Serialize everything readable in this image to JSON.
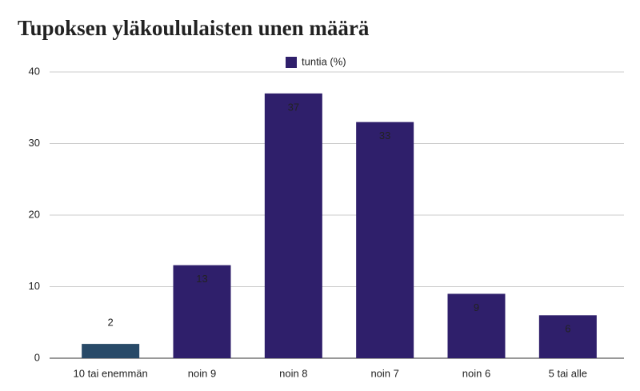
{
  "chart_data": {
    "type": "bar",
    "title": "Tupoksen yläkoululaisten unen määrä",
    "categories": [
      "10 tai enemmän",
      "noin 9",
      "noin 8",
      "noin 7",
      "noin 6",
      "5 tai alle"
    ],
    "series": [
      {
        "name": "tuntia (%)",
        "color": "#2f1f6b",
        "values": [
          2,
          13,
          37,
          33,
          9,
          6
        ],
        "point_colors": [
          "#284a68",
          "#2f1f6b",
          "#2f1f6b",
          "#2f1f6b",
          "#2f1f6b",
          "#2f1f6b"
        ]
      }
    ],
    "ylim": [
      0,
      40
    ],
    "yticks": [
      0,
      10,
      20,
      30,
      40
    ],
    "grid": true,
    "legend": "top"
  }
}
